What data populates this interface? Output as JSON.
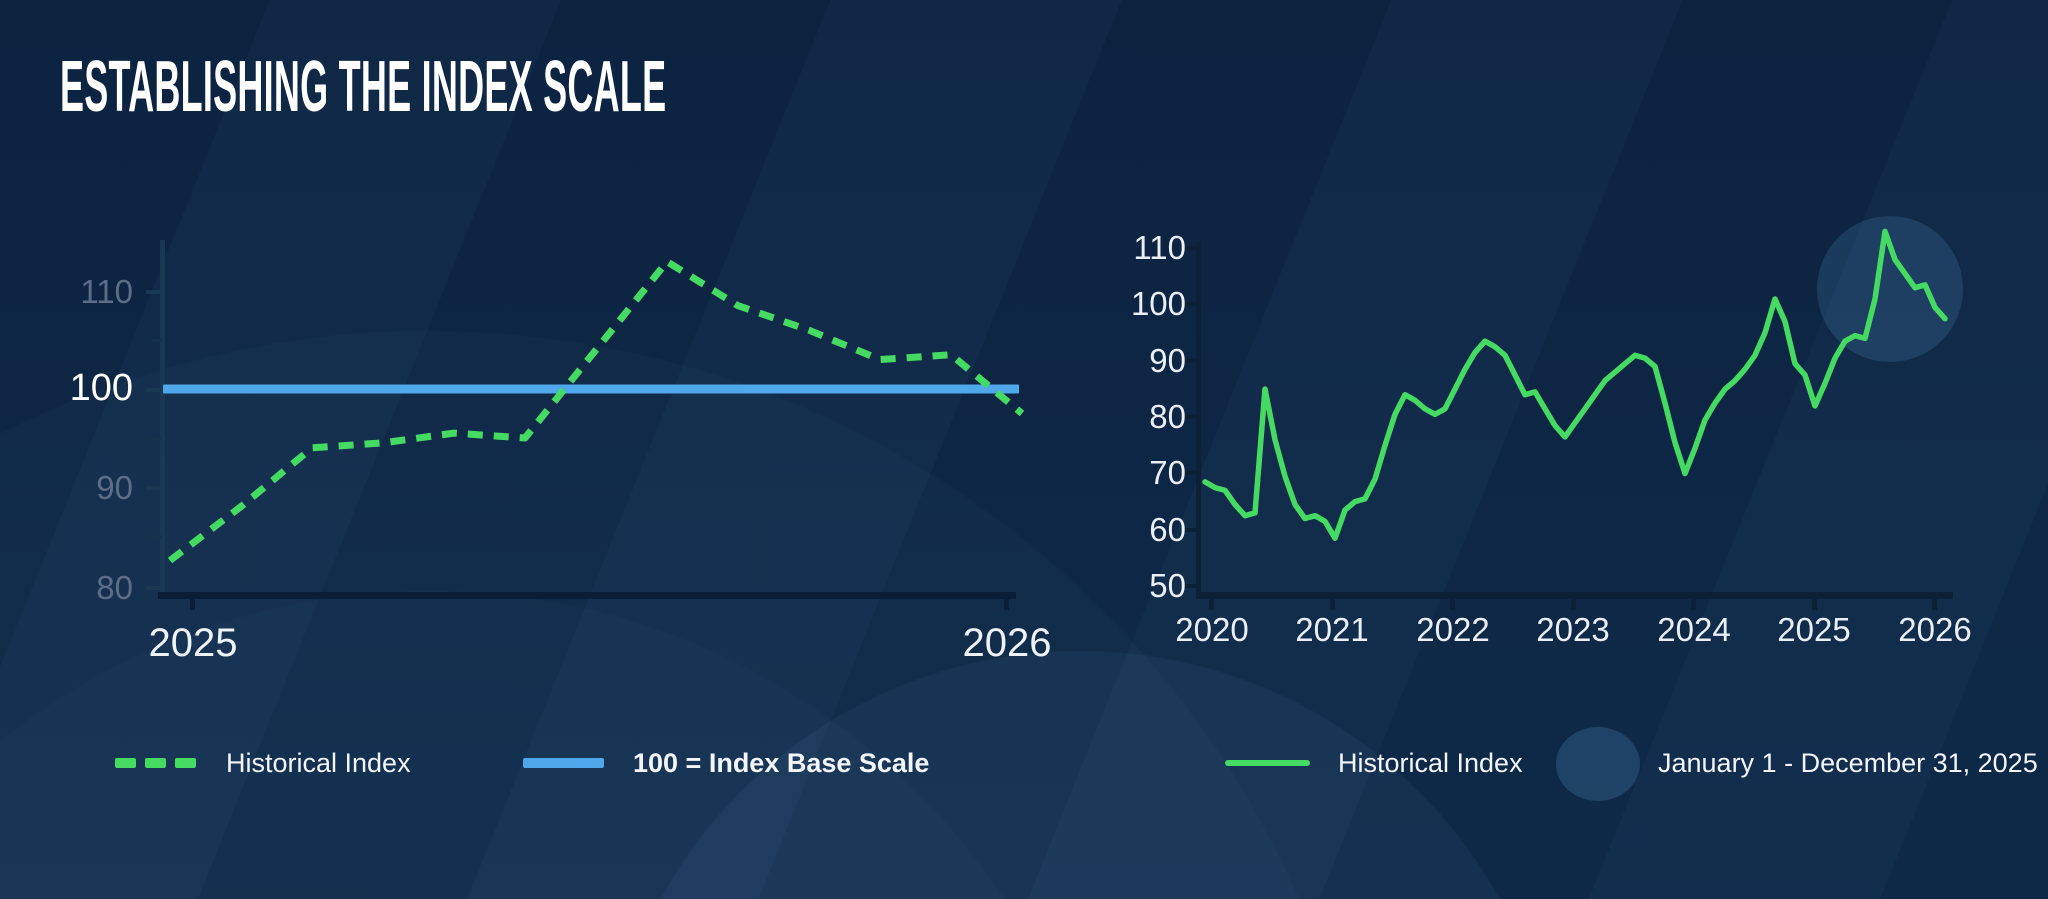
{
  "title": "ESTABLISHING THE INDEX SCALE",
  "colors": {
    "background": "#0d2440",
    "green": "#45db62",
    "blue": "#4fa8ea",
    "highlight": "rgba(96,162,216,0.18)",
    "legend_circle": "rgba(96,162,216,0.22)",
    "axis_light": "#1a3854",
    "axis_dark": "#0a1f37",
    "axis_right": "#0c2136"
  },
  "left_chart": {
    "y_labels": [
      "110",
      "100",
      "90",
      "80"
    ],
    "x_labels": [
      "2025",
      "2026"
    ],
    "legend": [
      {
        "label": "Historical Index"
      },
      {
        "label": "100 = Index Base Scale"
      }
    ]
  },
  "right_chart": {
    "y_labels": [
      "110",
      "100",
      "90",
      "80",
      "70",
      "60",
      "50"
    ],
    "x_labels": [
      "2020",
      "2021",
      "2022",
      "2023",
      "2024",
      "2025",
      "2026"
    ],
    "legend": [
      {
        "label": "Historical Index"
      },
      {
        "label": "January 1 - December 31, 2025"
      }
    ]
  },
  "chart_data": [
    {
      "type": "line",
      "title": "Index scale detail, 2025",
      "xlabel": "",
      "ylabel": "",
      "x_start": "2025-01",
      "x_step_months": 1,
      "x_tick_labels": [
        "2025",
        "2026"
      ],
      "yticks": [
        80,
        90,
        100,
        110
      ],
      "ylim": [
        78,
        115
      ],
      "grid": false,
      "legend_position": "bottom",
      "series": [
        {
          "name": "Historical Index",
          "style": "dashed",
          "color": "#45db62",
          "values": [
            82.5,
            88,
            94,
            94.5,
            95.5,
            95,
            104,
            113,
            108.5,
            106,
            103,
            103.5,
            97.5
          ]
        }
      ],
      "baseline": {
        "label": "100 = Index Base Scale",
        "value": 100,
        "color": "#4fa8ea"
      }
    },
    {
      "type": "line",
      "title": "Historical index, 2020-2026",
      "xlabel": "",
      "ylabel": "",
      "x_start": "2020-01",
      "x_step_months": 1,
      "x_tick_labels": [
        "2020",
        "2021",
        "2022",
        "2023",
        "2024",
        "2025",
        "2026"
      ],
      "yticks": [
        50,
        60,
        70,
        80,
        90,
        100,
        110
      ],
      "ylim": [
        47,
        116
      ],
      "grid": false,
      "legend_position": "bottom",
      "series": [
        {
          "name": "Historical Index",
          "style": "solid",
          "color": "#45db62",
          "values": [
            68.5,
            67.5,
            67,
            64.5,
            62.5,
            63,
            85,
            76,
            69.5,
            64.5,
            62,
            62.5,
            61.5,
            58.5,
            63.5,
            65,
            65.5,
            69,
            75,
            80.5,
            84,
            83,
            81.5,
            80.5,
            81.5,
            85,
            88.5,
            91.5,
            93.5,
            92.5,
            91,
            87.5,
            84,
            84.5,
            81.5,
            78.5,
            76.5,
            79,
            81.5,
            84,
            86.5,
            88,
            89.5,
            91,
            90.5,
            89,
            82.5,
            75.5,
            70,
            74.5,
            79.5,
            82.5,
            85,
            86.5,
            88.5,
            91,
            95,
            101,
            97,
            89.5,
            87.5,
            82,
            86,
            90.5,
            93.5,
            94.5,
            94,
            101,
            113,
            108,
            105.5,
            103,
            103.5,
            99.5,
            97.5
          ]
        }
      ],
      "annotation": {
        "type": "circle-highlight",
        "label": "January 1 - December 31, 2025",
        "center_month": "2025-09",
        "center_value": 102,
        "color": "rgba(96,162,216,0.18)"
      }
    }
  ]
}
